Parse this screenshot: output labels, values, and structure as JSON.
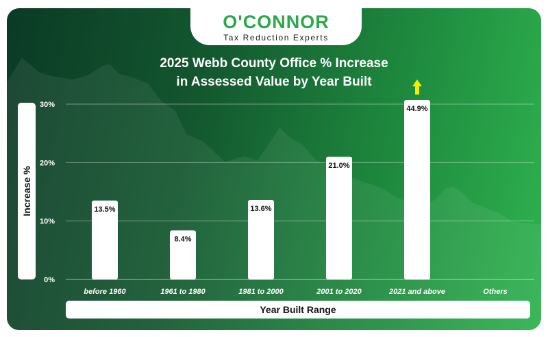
{
  "brand": {
    "name": "O'CONNOR",
    "tagline": "Tax Reduction Experts"
  },
  "colors": {
    "accent_green": "#2aa84a",
    "arrow_yellow": "#f2ee00",
    "bar_fill": "#ffffff"
  },
  "chart_data": {
    "type": "bar",
    "title": "2025 Webb County Office % Increase in Assessed Value by Year Built",
    "title_lines": [
      "2025 Webb County Office % Increase",
      "in Assessed Value by Year Built"
    ],
    "xlabel": "Year Built Range",
    "ylabel": "Increase %",
    "categories": [
      "before 1960",
      "1961 to 1980",
      "1981 to 2000",
      "2001 to 2020",
      "2021 and above",
      "Others"
    ],
    "values": [
      13.5,
      8.4,
      13.6,
      21.0,
      44.9,
      null
    ],
    "value_labels": [
      "13.5%",
      "8.4%",
      "13.6%",
      "21.0%",
      "44.9%",
      ""
    ],
    "ylim": [
      0,
      30
    ],
    "yticks": [
      0,
      10,
      20,
      30
    ],
    "ytick_labels": [
      "0%",
      "10%",
      "20%",
      "30%"
    ],
    "grid": true,
    "overflow_indicator": {
      "category": "2021 and above",
      "icon": "up-arrow-icon"
    }
  }
}
